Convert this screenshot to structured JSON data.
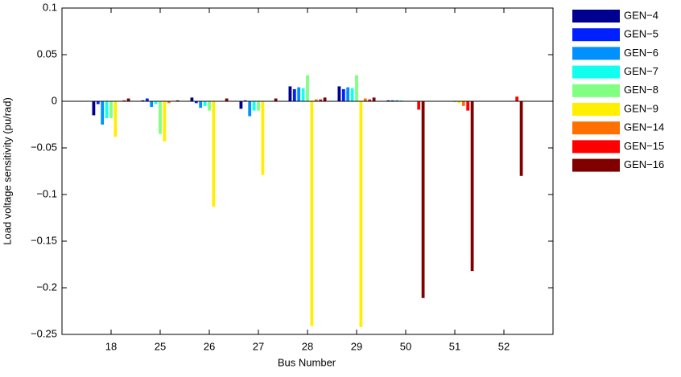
{
  "chart_data": {
    "type": "bar",
    "xlabel": "Bus Number",
    "ylabel": "Load voltage sensitivity (pu/rad)",
    "categories": [
      "18",
      "25",
      "26",
      "27",
      "28",
      "29",
      "50",
      "51",
      "52"
    ],
    "series": [
      {
        "name": "GEN−4",
        "color": "#000090",
        "values": [
          -0.015,
          0.001,
          0.004,
          -0.008,
          0.016,
          0.016,
          0.001,
          0,
          0
        ]
      },
      {
        "name": "GEN−5",
        "color": "#0020ff",
        "values": [
          -0.003,
          0.003,
          -0.002,
          0.001,
          0.013,
          0.013,
          0.001,
          0,
          0
        ]
      },
      {
        "name": "GEN−6",
        "color": "#0090ff",
        "values": [
          -0.025,
          -0.006,
          -0.007,
          -0.016,
          0.015,
          0.015,
          0.001,
          0,
          0
        ]
      },
      {
        "name": "GEN−7",
        "color": "#10ffef",
        "values": [
          -0.018,
          -0.003,
          -0.005,
          -0.01,
          0.014,
          0.014,
          0.001,
          0,
          0
        ]
      },
      {
        "name": "GEN−8",
        "color": "#80ff80",
        "values": [
          -0.018,
          -0.035,
          -0.01,
          -0.01,
          0.028,
          0.028,
          0,
          -0.001,
          0
        ]
      },
      {
        "name": "GEN−9",
        "color": "#ffef00",
        "values": [
          -0.038,
          -0.043,
          -0.113,
          -0.079,
          -0.241,
          -0.242,
          0,
          -0.002,
          0
        ]
      },
      {
        "name": "GEN−14",
        "color": "#ff7000",
        "values": [
          0,
          -0.002,
          0,
          0,
          0.002,
          0.003,
          0,
          -0.005,
          0
        ]
      },
      {
        "name": "GEN−15",
        "color": "#ff0000",
        "values": [
          0.001,
          0,
          0,
          0,
          0.002,
          0.002,
          -0.009,
          -0.01,
          0.005
        ]
      },
      {
        "name": "GEN−16",
        "color": "#800000",
        "values": [
          0.003,
          0.001,
          0.003,
          0.003,
          0.004,
          0.004,
          -0.211,
          -0.182,
          -0.08
        ]
      }
    ],
    "ylim": [
      -0.25,
      0.1
    ],
    "yticks": [
      0.1,
      0.05,
      0,
      {
        "value": -0.05,
        "label": "−0.05"
      },
      {
        "value": -0.1,
        "label": "−0.1"
      },
      {
        "value": -0.15,
        "label": "−0.15"
      },
      {
        "value": -0.2,
        "label": "−0.2"
      },
      {
        "value": -0.25,
        "label": "−0.25"
      }
    ],
    "legend": "outside-right"
  }
}
